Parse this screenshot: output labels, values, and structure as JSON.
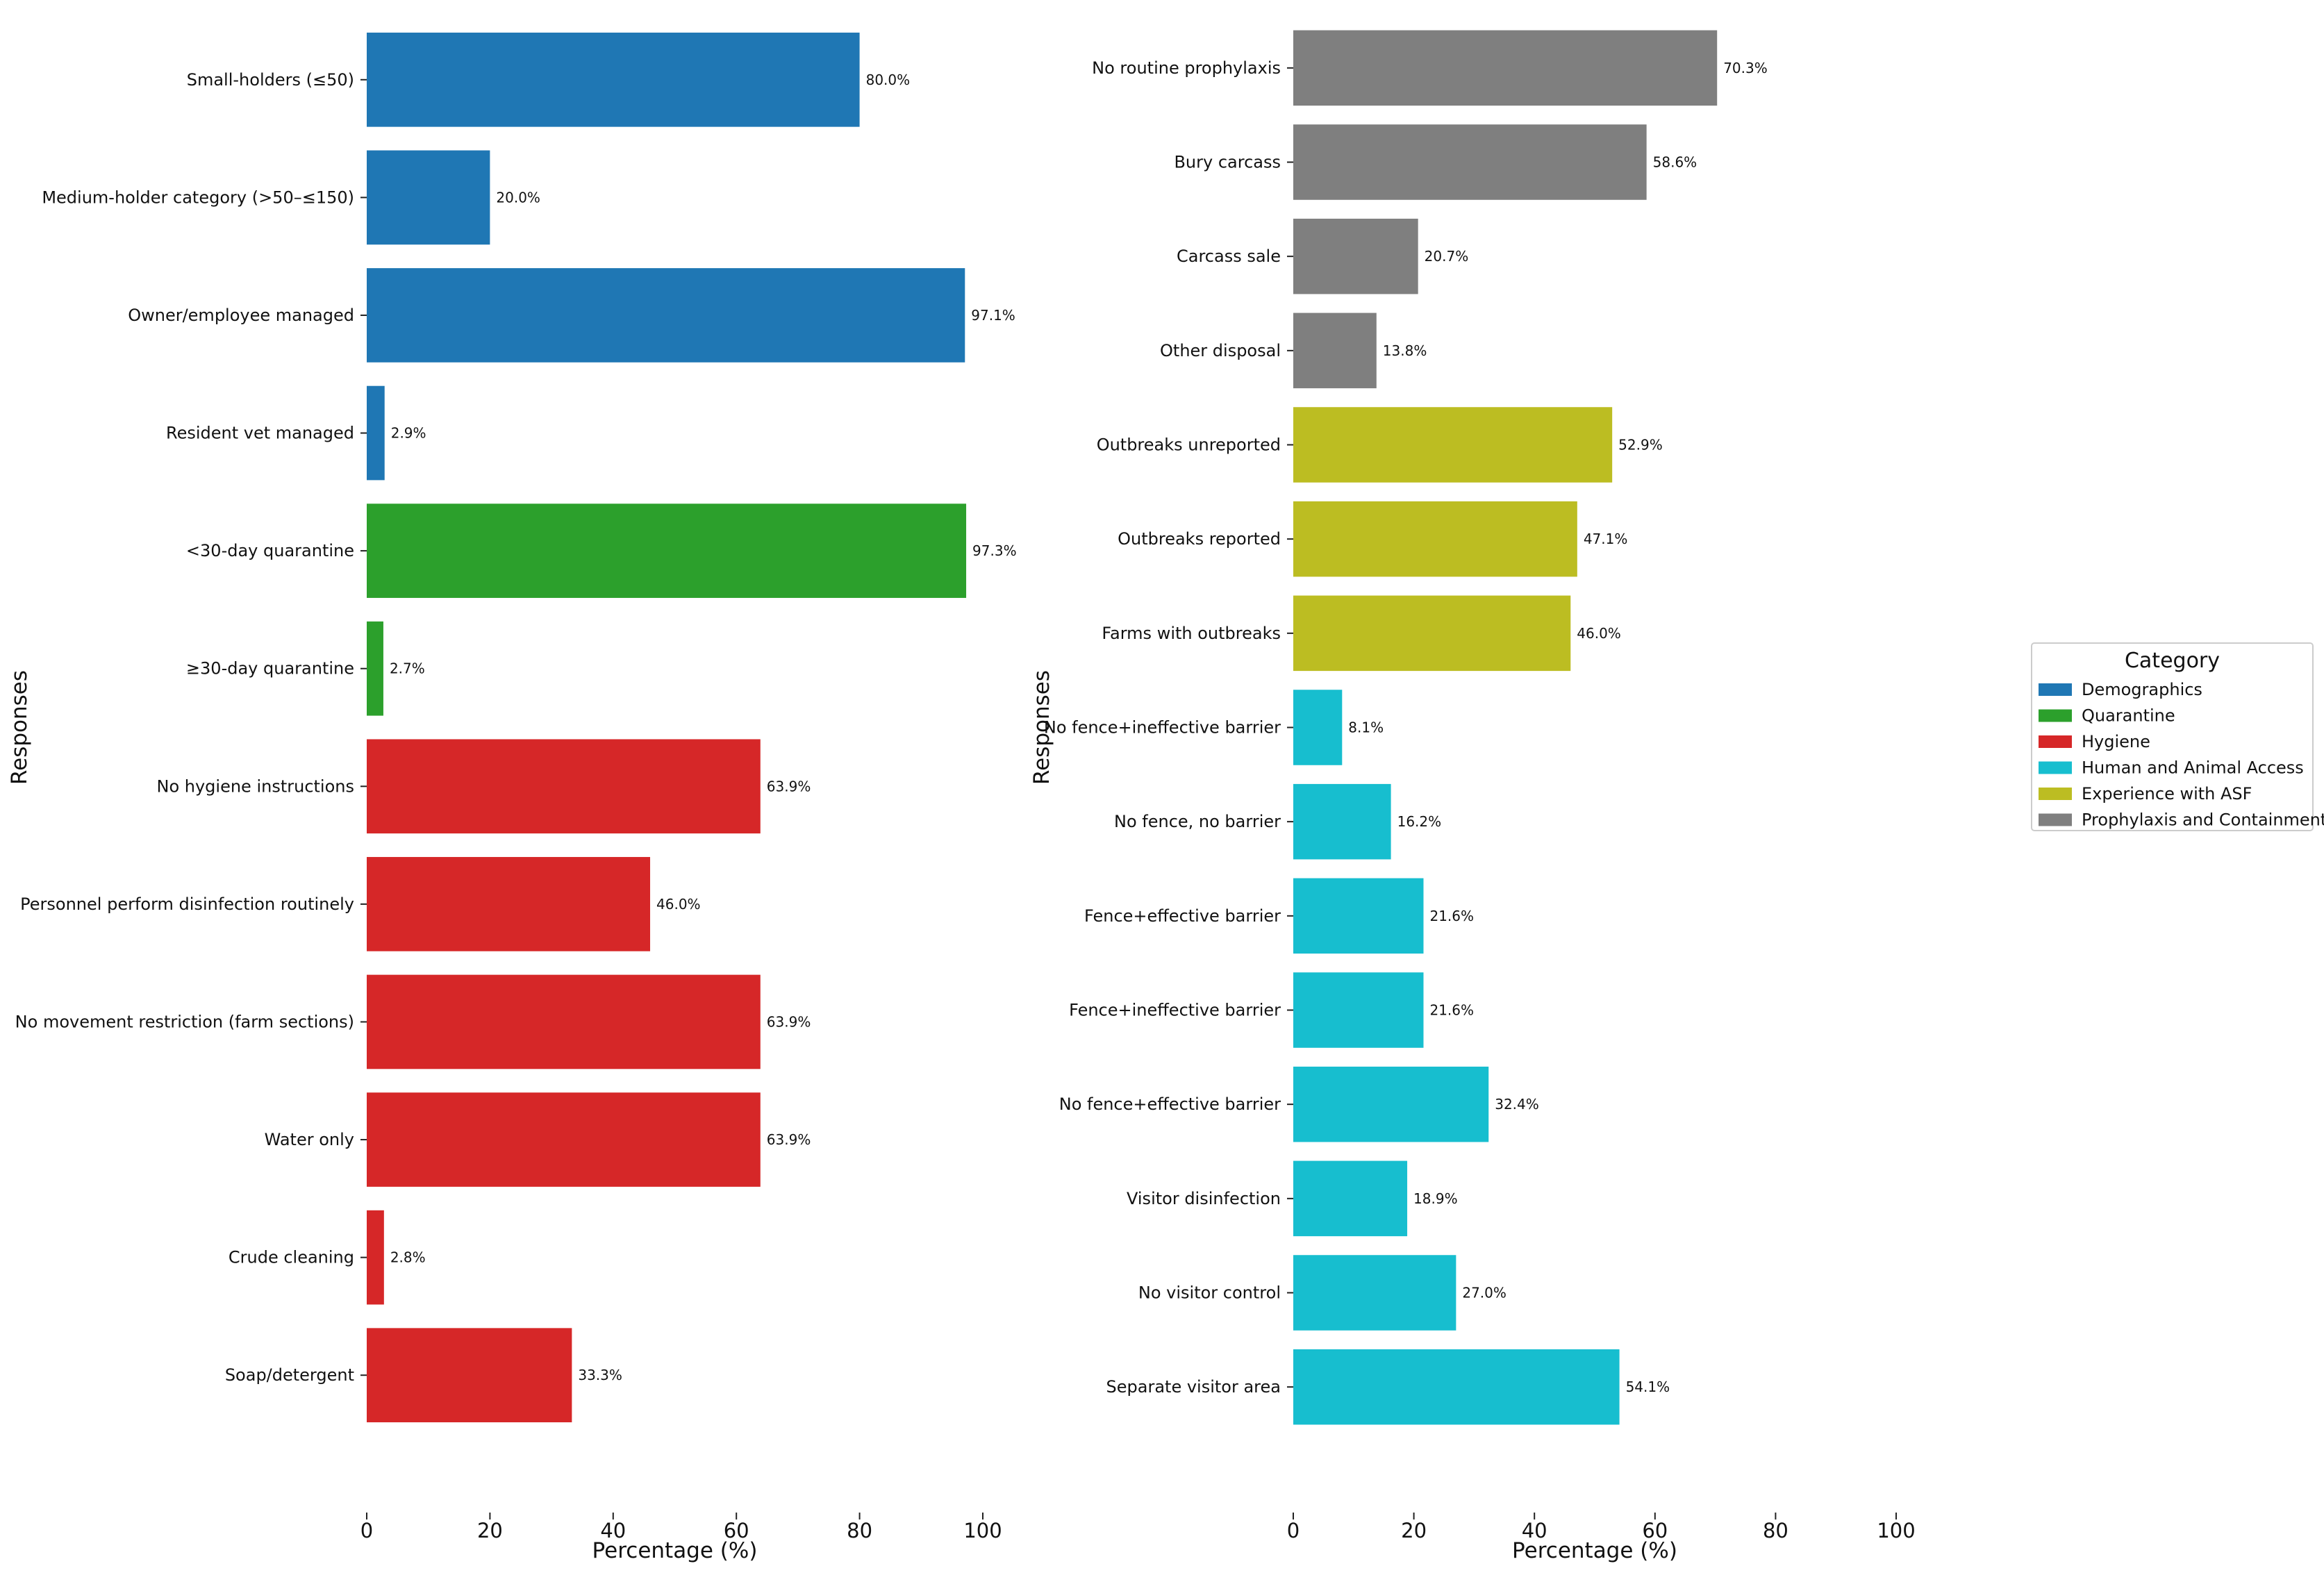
{
  "legend": {
    "title": "Category",
    "entries": [
      {
        "name": "Demographics",
        "color": "#1f77b4"
      },
      {
        "name": "Quarantine",
        "color": "#2ca02c"
      },
      {
        "name": "Hygiene",
        "color": "#d62728"
      },
      {
        "name": "Human and Animal Access",
        "color": "#17becf"
      },
      {
        "name": "Experience with ASF",
        "color": "#bcbd22"
      },
      {
        "name": "Prophylaxis and Containment",
        "color": "#7f7f7f"
      }
    ]
  },
  "chart_data": [
    {
      "type": "bar",
      "orientation": "horizontal",
      "xlabel": "Percentage (%)",
      "ylabel": "Responses",
      "xlim": [
        0,
        100
      ],
      "xticks": [
        0,
        20,
        40,
        60,
        80,
        100
      ],
      "grid": false,
      "categories": [
        "Small-holders (≤50)",
        "Medium-holder category (>50–≤150)",
        "Owner/employee managed",
        "Resident vet managed",
        "<30-day quarantine",
        "≥30-day quarantine",
        "No hygiene instructions",
        "Personnel perform disinfection routinely",
        "No movement restriction (farm sections)",
        "Water only",
        "Crude cleaning",
        "Soap/detergent"
      ],
      "values": [
        80.0,
        20.0,
        97.1,
        2.9,
        97.3,
        2.7,
        63.9,
        46.0,
        63.9,
        63.9,
        2.8,
        33.3
      ],
      "value_labels": [
        "80.0%",
        "20.0%",
        "97.1%",
        "2.9%",
        "97.3%",
        "2.7%",
        "63.9%",
        "46.0%",
        "63.9%",
        "63.9%",
        "2.8%",
        "33.3%"
      ],
      "category_groups": [
        "Demographics",
        "Demographics",
        "Demographics",
        "Demographics",
        "Quarantine",
        "Quarantine",
        "Hygiene",
        "Hygiene",
        "Hygiene",
        "Hygiene",
        "Hygiene",
        "Hygiene"
      ]
    },
    {
      "type": "bar",
      "orientation": "horizontal",
      "xlabel": "Percentage (%)",
      "ylabel": "Responses",
      "xlim": [
        0,
        100
      ],
      "xticks": [
        0,
        20,
        40,
        60,
        80,
        100
      ],
      "grid": false,
      "legend_position": "right",
      "categories": [
        "No routine prophylaxis",
        "Bury carcass",
        "Carcass sale",
        "Other disposal",
        "Outbreaks unreported",
        "Outbreaks reported",
        "Farms with outbreaks",
        "No fence+ineffective barrier",
        "No fence, no barrier",
        "Fence+effective barrier",
        "Fence+ineffective barrier",
        "No fence+effective barrier",
        "Visitor disinfection",
        "No visitor control",
        "Separate visitor area"
      ],
      "values": [
        70.3,
        58.6,
        20.7,
        13.8,
        52.9,
        47.1,
        46.0,
        8.1,
        16.2,
        21.6,
        21.6,
        32.4,
        18.9,
        27.0,
        54.1
      ],
      "value_labels": [
        "70.3%",
        "58.6%",
        "20.7%",
        "13.8%",
        "52.9%",
        "47.1%",
        "46.0%",
        "8.1%",
        "16.2%",
        "21.6%",
        "21.6%",
        "32.4%",
        "18.9%",
        "27.0%",
        "54.1%"
      ],
      "category_groups": [
        "Prophylaxis and Containment",
        "Prophylaxis and Containment",
        "Prophylaxis and Containment",
        "Prophylaxis and Containment",
        "Experience with ASF",
        "Experience with ASF",
        "Experience with ASF",
        "Human and Animal Access",
        "Human and Animal Access",
        "Human and Animal Access",
        "Human and Animal Access",
        "Human and Animal Access",
        "Human and Animal Access",
        "Human and Animal Access",
        "Human and Animal Access"
      ]
    }
  ]
}
